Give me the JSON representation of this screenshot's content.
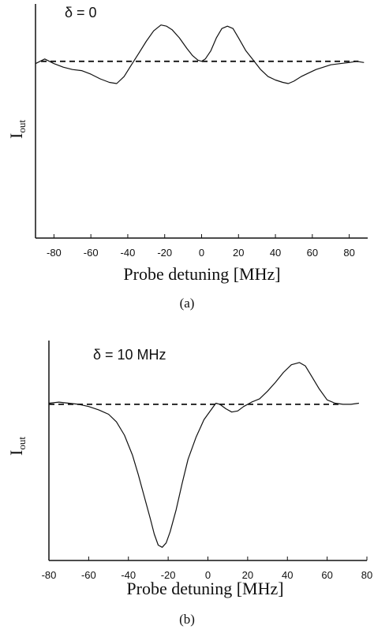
{
  "chart_data": [
    {
      "type": "line",
      "caption": "(a)",
      "annotation": "δ = 0",
      "xlabel": "Probe detuning [MHz]",
      "ylabel": "I",
      "ylabel_sub": "out",
      "xlim": [
        -90,
        90
      ],
      "ylim": [
        0,
        1
      ],
      "xticks": [
        -80,
        -60,
        -40,
        -20,
        0,
        20,
        40,
        60,
        80
      ],
      "baseline": 0.755,
      "series": [
        {
          "style": "solid",
          "x": [
            -90,
            -85,
            -80,
            -75,
            -70,
            -65,
            -60,
            -55,
            -50,
            -46,
            -42,
            -38,
            -34,
            -30,
            -26,
            -22,
            -19,
            -16,
            -12,
            -8,
            -5,
            -2,
            0,
            2,
            5,
            8,
            11,
            14,
            17,
            20,
            24,
            28,
            32,
            36,
            40,
            44,
            47,
            50,
            54,
            58,
            62,
            66,
            70,
            75,
            80,
            84,
            88
          ],
          "y": [
            0.745,
            0.765,
            0.745,
            0.73,
            0.72,
            0.715,
            0.7,
            0.68,
            0.665,
            0.66,
            0.69,
            0.74,
            0.79,
            0.84,
            0.885,
            0.91,
            0.905,
            0.89,
            0.855,
            0.81,
            0.78,
            0.76,
            0.755,
            0.765,
            0.8,
            0.855,
            0.895,
            0.905,
            0.895,
            0.855,
            0.8,
            0.76,
            0.72,
            0.69,
            0.675,
            0.665,
            0.66,
            0.67,
            0.69,
            0.705,
            0.72,
            0.73,
            0.74,
            0.745,
            0.75,
            0.755,
            0.75
          ]
        },
        {
          "style": "dashed",
          "x": [
            -87,
            85
          ],
          "y": [
            0.755,
            0.755
          ]
        }
      ]
    },
    {
      "type": "line",
      "caption": "(b)",
      "annotation": "δ = 10 MHz",
      "xlabel": "Probe detuning [MHz]",
      "ylabel": "I",
      "ylabel_sub": "out",
      "xlim": [
        -80,
        80
      ],
      "ylim": [
        0,
        1
      ],
      "xticks": [
        -80,
        -60,
        -40,
        -20,
        0,
        20,
        40,
        60,
        80
      ],
      "baseline": 0.71,
      "series": [
        {
          "style": "solid",
          "x": [
            -80,
            -75,
            -70,
            -65,
            -60,
            -55,
            -50,
            -46,
            -42,
            -38,
            -35,
            -32,
            -29,
            -27,
            -25,
            -23,
            -21,
            -19,
            -16,
            -13,
            -10,
            -6,
            -2,
            2,
            4,
            6,
            9,
            12,
            15,
            18,
            22,
            26,
            30,
            34,
            38,
            42,
            46,
            49,
            52,
            56,
            60,
            64,
            68,
            72,
            76
          ],
          "y": [
            0.715,
            0.72,
            0.715,
            0.71,
            0.7,
            0.685,
            0.665,
            0.63,
            0.57,
            0.48,
            0.39,
            0.29,
            0.19,
            0.12,
            0.07,
            0.06,
            0.08,
            0.13,
            0.23,
            0.35,
            0.46,
            0.56,
            0.64,
            0.69,
            0.715,
            0.71,
            0.69,
            0.675,
            0.68,
            0.7,
            0.72,
            0.735,
            0.77,
            0.81,
            0.855,
            0.89,
            0.9,
            0.885,
            0.84,
            0.78,
            0.73,
            0.715,
            0.71,
            0.71,
            0.715
          ]
        },
        {
          "style": "dashed",
          "x": [
            -80,
            66
          ],
          "y": [
            0.71,
            0.71
          ]
        }
      ]
    }
  ]
}
